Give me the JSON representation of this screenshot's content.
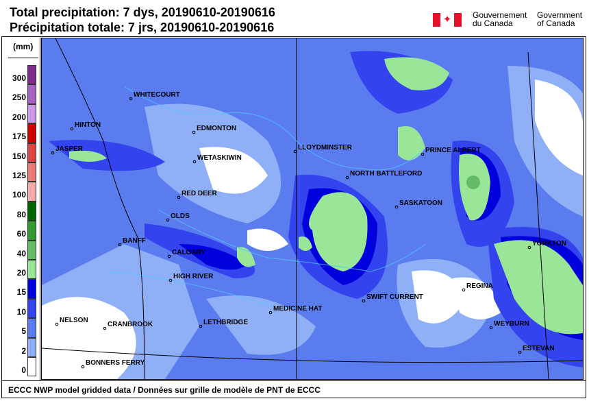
{
  "header": {
    "title_en": "Total precipitation: 7 dys, 20190610-20190616",
    "title_fr": "Précipitation totale: 7 jrs, 20190610-20190616",
    "logo": {
      "gov_fr_line1": "Gouvernement",
      "gov_fr_line2": "du Canada",
      "gov_en_line1": "Government",
      "gov_en_line2": "of Canada",
      "flag_color": "#e8112d"
    }
  },
  "legend": {
    "unit": "(mm)",
    "bins": [
      {
        "label": "300",
        "color": "#7b2d8e"
      },
      {
        "label": "250",
        "color": "#a862c2"
      },
      {
        "label": "200",
        "color": "#cc99ea"
      },
      {
        "label": "175",
        "color": "#cc0000"
      },
      {
        "label": "150",
        "color": "#dd4444"
      },
      {
        "label": "125",
        "color": "#e87a7a"
      },
      {
        "label": "100",
        "color": "#f3aaaa"
      },
      {
        "label": "80",
        "color": "#006600"
      },
      {
        "label": "60",
        "color": "#339933"
      },
      {
        "label": "40",
        "color": "#66bb66"
      },
      {
        "label": "20",
        "color": "#99e699"
      },
      {
        "label": "15",
        "color": "#0000dd"
      },
      {
        "label": "10",
        "color": "#3344ee"
      },
      {
        "label": "5",
        "color": "#5a7cee"
      },
      {
        "label": "2",
        "color": "#8fb0f7"
      },
      {
        "label": "0",
        "color": "#ffffff"
      }
    ]
  },
  "map": {
    "cities": [
      {
        "name": "WHITECOURT"
      },
      {
        "name": "HINTON"
      },
      {
        "name": "JASPER"
      },
      {
        "name": "EDMONTON"
      },
      {
        "name": "WETASKIWIN"
      },
      {
        "name": "RED DEER"
      },
      {
        "name": "OLDS"
      },
      {
        "name": "BANFF"
      },
      {
        "name": "CALGARY"
      },
      {
        "name": "HIGH RIVER"
      },
      {
        "name": "NELSON"
      },
      {
        "name": "CRANBROOK"
      },
      {
        "name": "LETHBRIDGE"
      },
      {
        "name": "BONNERS FERRY"
      },
      {
        "name": "MEDICINE HAT"
      },
      {
        "name": "SWIFT CURRENT"
      },
      {
        "name": "LLOYDMINSTER"
      },
      {
        "name": "NORTH BATTLEFORD"
      },
      {
        "name": "SASKATOON"
      },
      {
        "name": "PRINCE ALBERT"
      },
      {
        "name": "YORKTON"
      },
      {
        "name": "REGINA"
      },
      {
        "name": "WEYBURN"
      },
      {
        "name": "ESTEVAN"
      }
    ]
  },
  "footer": {
    "text": "ECCC NWP model gridded data / Données sur grille de modèle de PNT de ECCC"
  }
}
